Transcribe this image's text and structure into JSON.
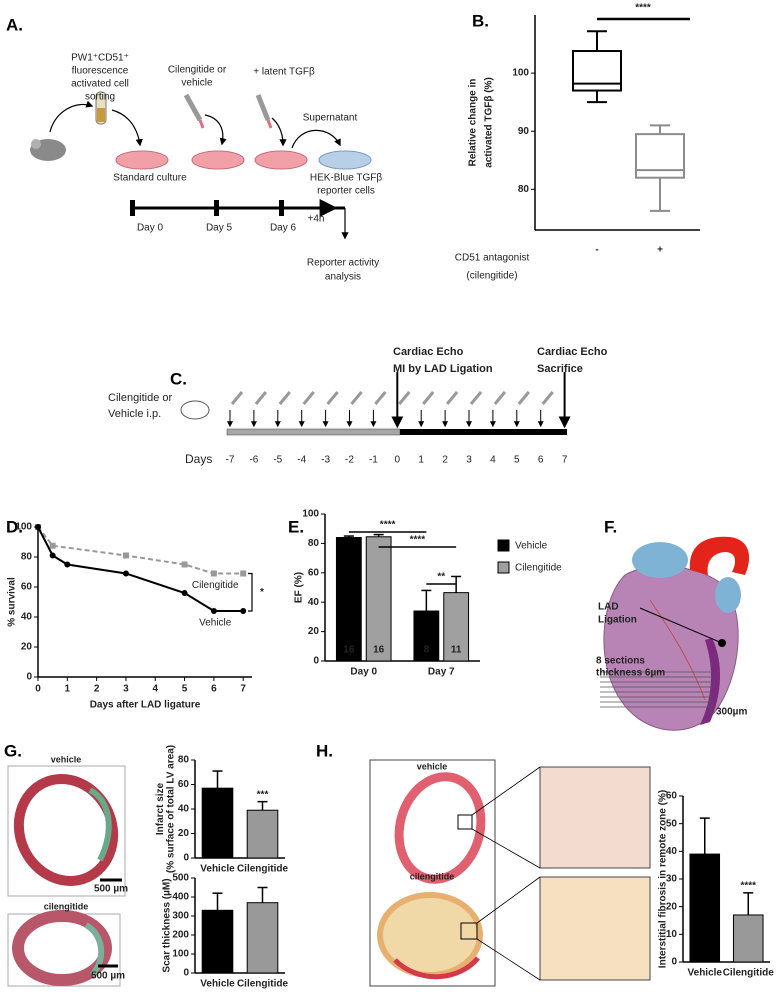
{
  "panel_labels": [
    "A.",
    "B.",
    "C.",
    "D.",
    "E.",
    "F.",
    "G.",
    "H."
  ],
  "panel_a": {
    "sorting": [
      "PW1⁺CD51⁺",
      "fluorescence",
      "activated cell",
      "sorting"
    ],
    "treatment": [
      "Cilengitide or",
      "vehicle"
    ],
    "latent": "+ latent TGFβ",
    "supernatant": "Supernatant",
    "culture": "Standard culture",
    "reporter_cells": [
      "HEK-Blue TGFβ",
      "reporter cells"
    ],
    "days": [
      "Day 0",
      "Day 5",
      "Day 6"
    ],
    "delay": "+4h",
    "analysis": [
      "Reporter activity",
      "analysis"
    ]
  },
  "panel_c": {
    "treatment": [
      "Cilengitide or",
      "Vehicle i.p."
    ],
    "event_day0": [
      "Cardiac Echo",
      "MI by LAD Ligation"
    ],
    "event_day7": [
      "Cardiac Echo",
      "Sacrifice"
    ],
    "days_label": "Days",
    "days": [
      -7,
      -6,
      -5,
      -4,
      -3,
      -2,
      -1,
      0,
      1,
      2,
      3,
      4,
      5,
      6,
      7
    ]
  },
  "panel_f": {
    "ligation": [
      "LAD",
      "Ligation"
    ],
    "sections": [
      "8 sections",
      "thickness 6µm"
    ],
    "spacing": "300µm"
  },
  "panel_g": {
    "images": [
      "vehicle",
      "cilengitide"
    ],
    "scale_bars": [
      "500 µm",
      "500 µm"
    ]
  },
  "panel_h": {
    "images": [
      "vehicle",
      "cilengitide"
    ]
  },
  "chart_data": [
    {
      "type": "box",
      "ylabel": [
        "Relative change in",
        "activated TGFβ (%)"
      ],
      "xlabel": [
        "CD51 antagonist",
        "(cilengitide)"
      ],
      "categories": [
        "-",
        "+"
      ],
      "boxes": [
        {
          "min": 95,
          "q1": 97,
          "median": 98.2,
          "q3": 103.8,
          "max": 107.2
        },
        {
          "min": 76.3,
          "q1": 82,
          "median": 83.3,
          "q3": 89.5,
          "max": 91
        }
      ],
      "colors": [
        "#000000",
        "#8c8c8c"
      ],
      "ylim": [
        73,
        110
      ],
      "yticks": [
        80,
        90,
        100
      ],
      "significance": "****"
    },
    {
      "type": "line",
      "ylabel": [
        "% survival"
      ],
      "xlabel": "Days after LAD ligature",
      "xlim": [
        0,
        7.3
      ],
      "xticks": [
        0,
        1,
        2,
        3,
        4,
        5,
        6,
        7
      ],
      "ylim": [
        0,
        100
      ],
      "yticks": [
        0,
        20,
        40,
        60,
        80,
        100
      ],
      "series": [
        {
          "name": "Cilengitide",
          "color": "#999999",
          "dashed": true,
          "x": [
            0,
            0.5,
            3,
            5,
            6,
            7
          ],
          "values": [
            100,
            87.5,
            81,
            75,
            69,
            69
          ]
        },
        {
          "name": "Vehicle",
          "color": "#000000",
          "dashed": false,
          "x": [
            0,
            0.5,
            1,
            3,
            5,
            6,
            7
          ],
          "values": [
            100,
            81,
            75,
            69,
            56,
            44,
            44
          ]
        }
      ],
      "annotation": "*"
    },
    {
      "type": "bar",
      "ylabel": [
        "EF (%)"
      ],
      "categories": [
        "Day 0",
        "Day 7"
      ],
      "series": [
        {
          "name": "Vehicle",
          "color": "#000000",
          "values": [
            84,
            34
          ],
          "errors": [
            1,
            14
          ],
          "n": [
            16,
            8
          ]
        },
        {
          "name": "Cilengitide",
          "color": "#a0a0a0",
          "values": [
            84.5,
            46.5
          ],
          "errors": [
            1.5,
            11
          ],
          "n": [
            16,
            11
          ]
        }
      ],
      "ylim": [
        0,
        100
      ],
      "yticks": [
        0,
        20,
        40,
        60,
        80,
        100
      ],
      "significance": [
        "****",
        "****",
        "**"
      ],
      "legend": "right"
    },
    {
      "type": "bar",
      "ylabel": [
        "Infarct size",
        "(% surface of total LV area)"
      ],
      "categories": [
        "Vehicle",
        "Cilengitide"
      ],
      "values": [
        57,
        39
      ],
      "errors": [
        14,
        7
      ],
      "colors": [
        "#000000",
        "#999999"
      ],
      "ylim": [
        0,
        80
      ],
      "yticks": [
        0,
        20,
        40,
        60,
        80
      ],
      "significance": "***"
    },
    {
      "type": "bar",
      "ylabel": [
        "Scar thickness (µM)"
      ],
      "categories": [
        "Vehicle",
        "Cilengitide"
      ],
      "values": [
        330,
        370
      ],
      "errors": [
        90,
        80
      ],
      "colors": [
        "#000000",
        "#999999"
      ],
      "ylim": [
        0,
        500
      ],
      "yticks": [
        0,
        100,
        200,
        300,
        400,
        500
      ]
    },
    {
      "type": "bar",
      "ylabel": [
        "Interstitial fibrosis in remote zone (%)"
      ],
      "categories": [
        "Vehicle",
        "Cilengitide"
      ],
      "values": [
        39,
        17
      ],
      "errors": [
        13,
        8
      ],
      "colors": [
        "#000000",
        "#999999"
      ],
      "ylim": [
        0,
        60
      ],
      "yticks": [
        0,
        10,
        20,
        30,
        40,
        50,
        60
      ],
      "significance": "****"
    }
  ]
}
